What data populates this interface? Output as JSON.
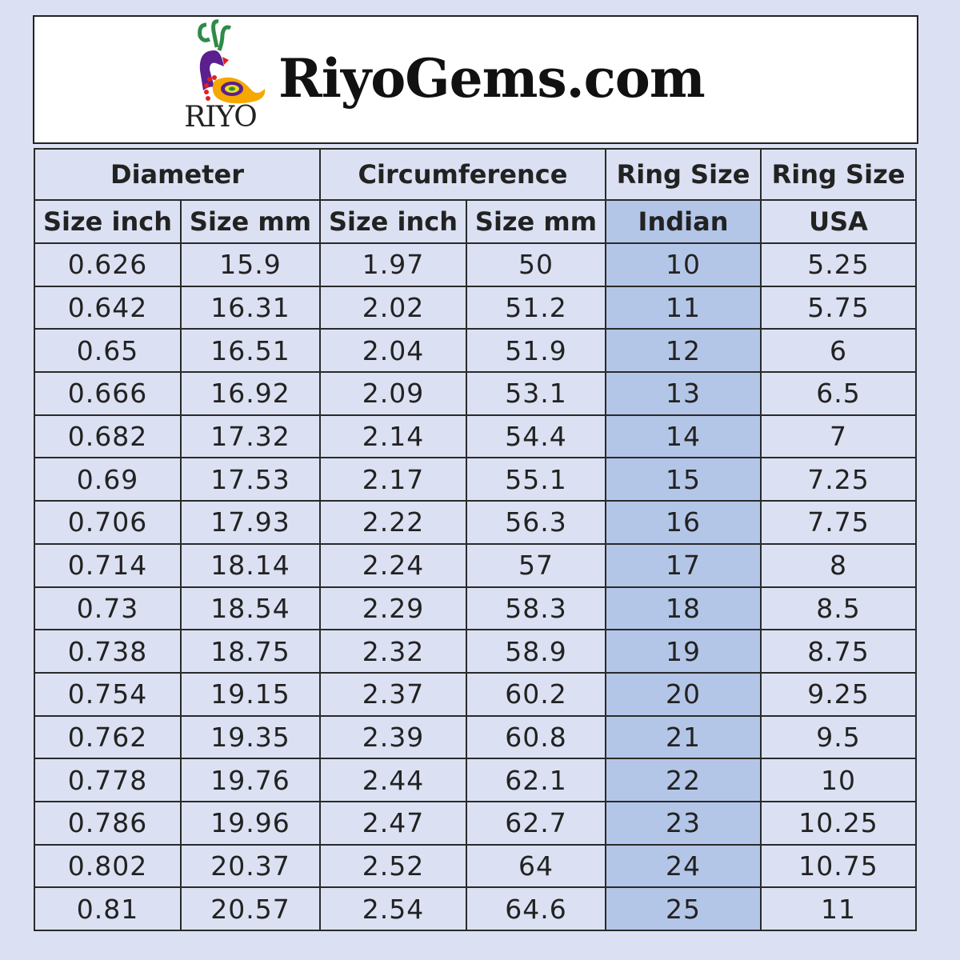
{
  "banner": {
    "logo_text": "RIYO",
    "site_name": "RiyoGems.com"
  },
  "colors": {
    "background": "#dbe1f2",
    "highlight_column": "#b4c6e7"
  },
  "header": {
    "groups": [
      "Diameter",
      "Circumference",
      "Ring Size",
      "Ring Size"
    ],
    "sub": [
      "Size inch",
      "Size mm",
      "Size inch",
      "Size mm",
      "Indian",
      "USA"
    ]
  },
  "rows": [
    [
      "0.626",
      "15.9",
      "1.97",
      "50",
      "10",
      "5.25"
    ],
    [
      "0.642",
      "16.31",
      "2.02",
      "51.2",
      "11",
      "5.75"
    ],
    [
      "0.65",
      "16.51",
      "2.04",
      "51.9",
      "12",
      "6"
    ],
    [
      "0.666",
      "16.92",
      "2.09",
      "53.1",
      "13",
      "6.5"
    ],
    [
      "0.682",
      "17.32",
      "2.14",
      "54.4",
      "14",
      "7"
    ],
    [
      "0.69",
      "17.53",
      "2.17",
      "55.1",
      "15",
      "7.25"
    ],
    [
      "0.706",
      "17.93",
      "2.22",
      "56.3",
      "16",
      "7.75"
    ],
    [
      "0.714",
      "18.14",
      "2.24",
      "57",
      "17",
      "8"
    ],
    [
      "0.73",
      "18.54",
      "2.29",
      "58.3",
      "18",
      "8.5"
    ],
    [
      "0.738",
      "18.75",
      "2.32",
      "58.9",
      "19",
      "8.75"
    ],
    [
      "0.754",
      "19.15",
      "2.37",
      "60.2",
      "20",
      "9.25"
    ],
    [
      "0.762",
      "19.35",
      "2.39",
      "60.8",
      "21",
      "9.5"
    ],
    [
      "0.778",
      "19.76",
      "2.44",
      "62.1",
      "22",
      "10"
    ],
    [
      "0.786",
      "19.96",
      "2.47",
      "62.7",
      "23",
      "10.25"
    ],
    [
      "0.802",
      "20.37",
      "2.52",
      "64",
      "24",
      "10.75"
    ],
    [
      "0.81",
      "20.57",
      "2.54",
      "64.6",
      "25",
      "11"
    ]
  ]
}
